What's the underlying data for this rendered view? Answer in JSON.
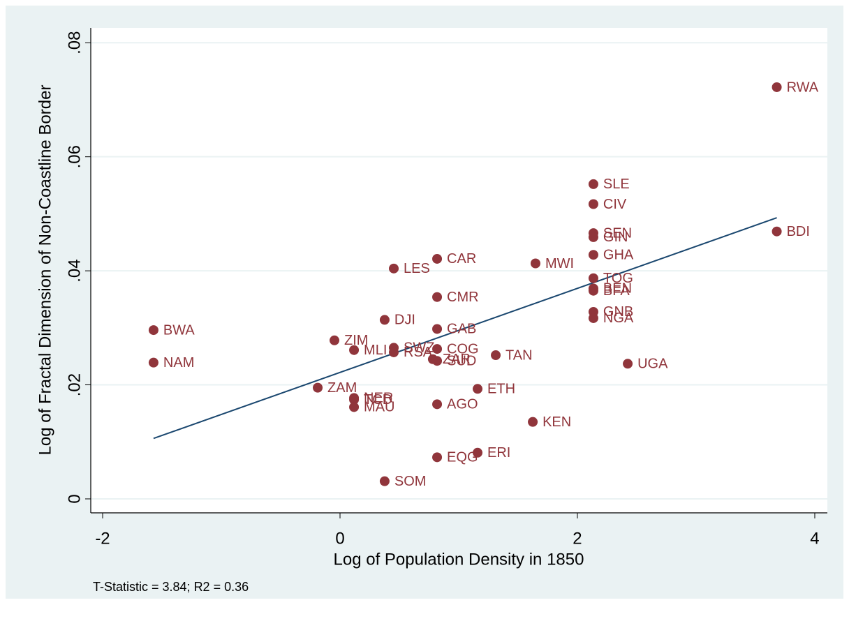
{
  "chart_data": {
    "type": "scatter",
    "xlabel": "Log of Population Density in 1850",
    "ylabel": "Log of Fractal Dimension of Non-Coastline Border",
    "note": "T-Statistic = 3.84; R2 = 0.36",
    "color": "#90353b",
    "labels": [
      "RWA",
      "BDI",
      "SLE",
      "CIV",
      "SEN",
      "GIN",
      "GHA",
      "TOG",
      "BEN",
      "BFA",
      "GNB",
      "NGA",
      "MWI",
      "KEN",
      "UGA",
      "TAN",
      "ETH",
      "ERI",
      "EQG",
      "AGO",
      "CAR",
      "CMR",
      "GAB",
      "COG",
      "SUD",
      "ZAR",
      "LES",
      "DJI",
      "SWZ",
      "RSA",
      "SOM",
      "ZIM",
      "MLI",
      "NER",
      "TCD",
      "MAU",
      "ZAM",
      "BWA",
      "NAM"
    ],
    "x": [
      3.68,
      3.68,
      2.135,
      2.135,
      2.135,
      2.135,
      2.135,
      2.135,
      2.135,
      2.135,
      2.135,
      2.135,
      1.647,
      1.624,
      2.424,
      1.312,
      1.159,
      1.159,
      0.818,
      0.818,
      0.818,
      0.818,
      0.818,
      0.818,
      0.818,
      0.782,
      0.453,
      0.376,
      0.453,
      0.453,
      0.376,
      -0.047,
      0.118,
      0.118,
      0.118,
      0.118,
      -0.188,
      -1.571,
      -1.571
    ],
    "y": [
      0.0722,
      0.0469,
      0.0552,
      0.0517,
      0.0466,
      0.0459,
      0.0428,
      0.0387,
      0.0369,
      0.0365,
      0.0328,
      0.0317,
      0.0413,
      0.0135,
      0.0237,
      0.0252,
      0.0193,
      0.0081,
      0.0073,
      0.0166,
      0.0421,
      0.0354,
      0.0298,
      0.0263,
      0.0242,
      0.0245,
      0.0404,
      0.0314,
      0.0265,
      0.0257,
      0.0031,
      0.0278,
      0.0261,
      0.0177,
      0.0174,
      0.0161,
      0.0195,
      0.0296,
      0.0239
    ],
    "fit": {
      "color": "#1a476f",
      "x": [
        -1.571,
        3.68
      ],
      "y": [
        0.0106,
        0.0493
      ]
    },
    "xlim": [
      -2.1,
      4.106
    ],
    "ylim": [
      -0.00245,
      0.0826
    ],
    "xticks": [
      -2,
      0,
      2,
      4
    ],
    "yticks": [
      0,
      {
        "value": 0.02,
        "label": ".02"
      },
      {
        "value": 0.04,
        "label": ".04"
      },
      {
        "value": 0.06,
        "label": ".06"
      },
      {
        "value": 0.08,
        "label": ".08"
      }
    ],
    "grid": true
  }
}
